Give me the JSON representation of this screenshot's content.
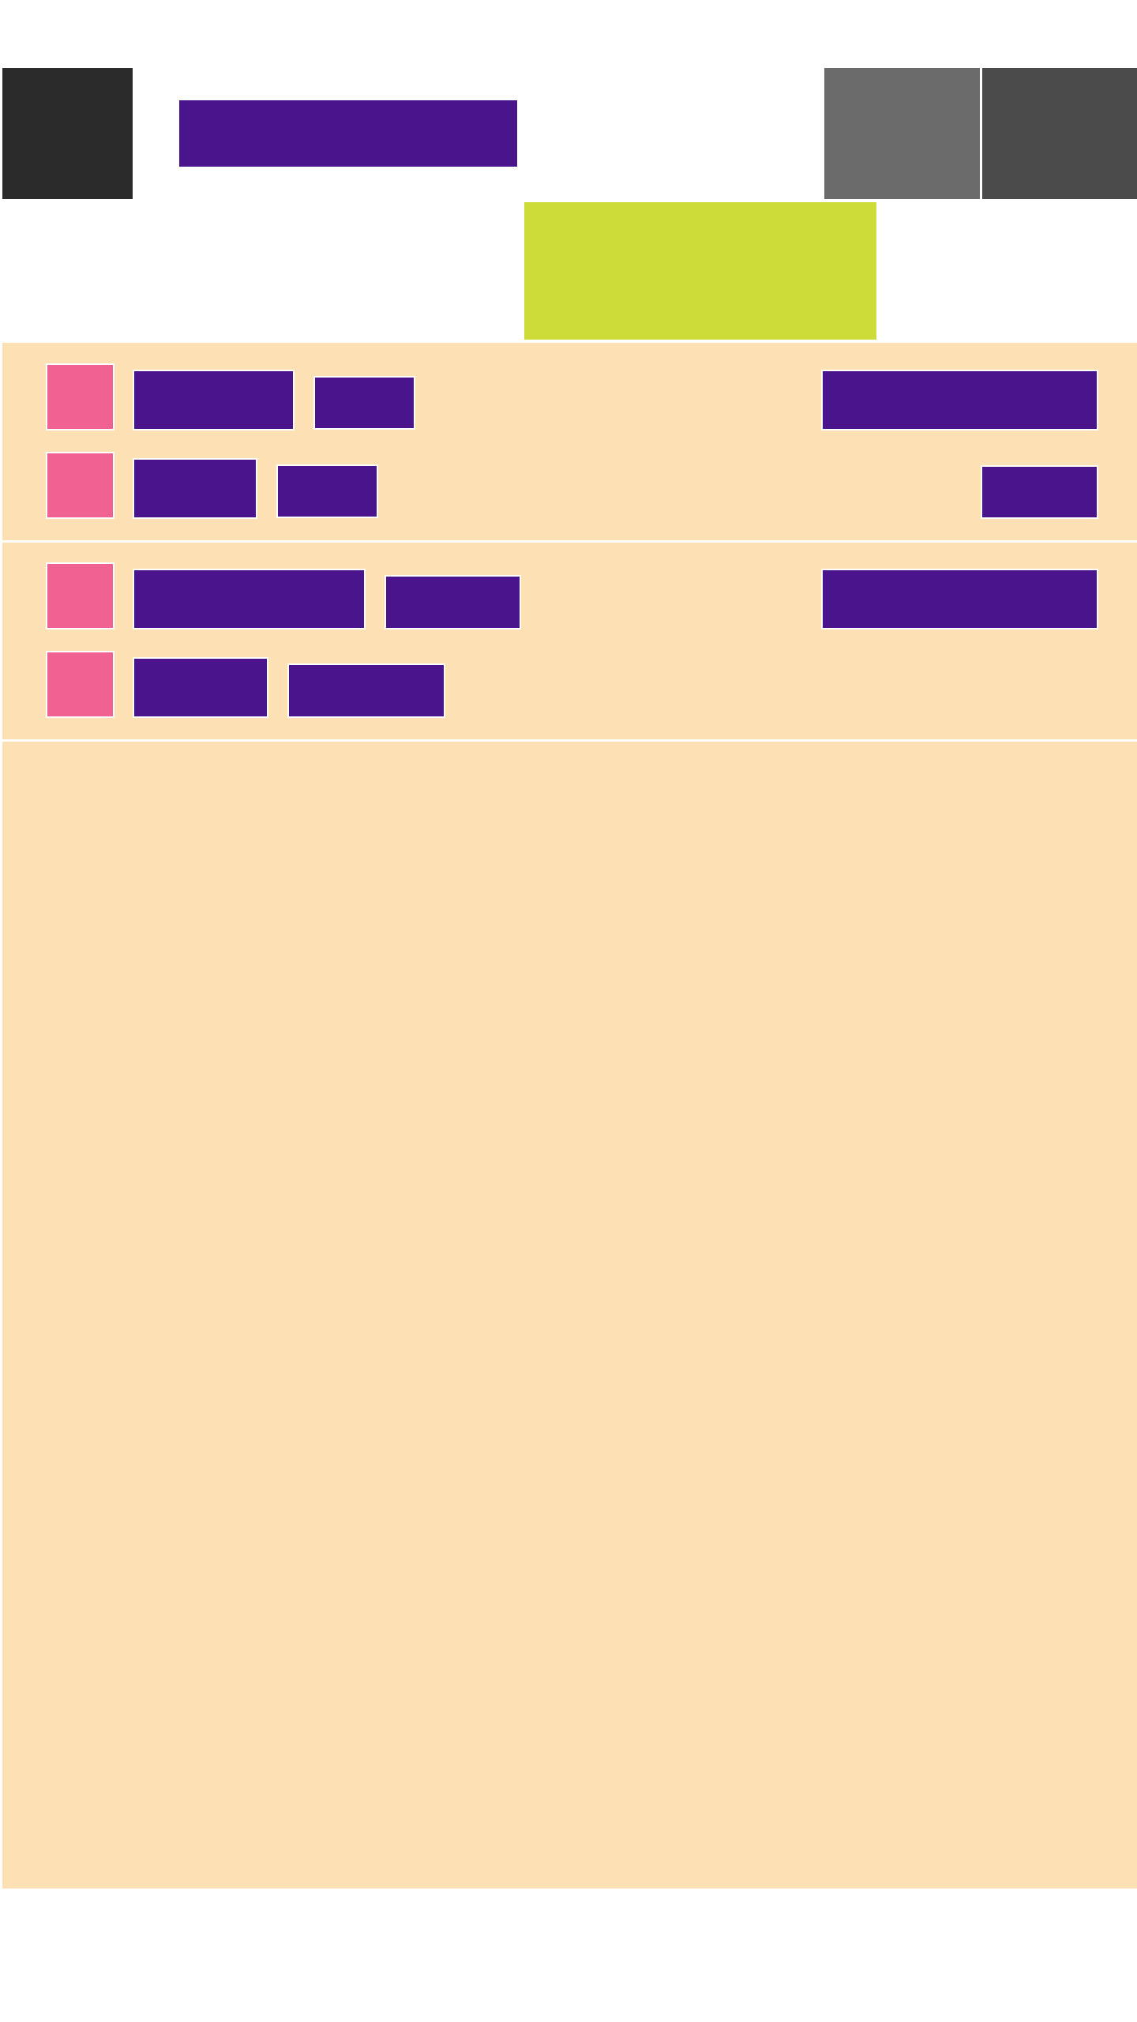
{
  "colors": {
    "nav_button": "#2b2b2b",
    "title_block": "#4a148c",
    "action_1": "#6b6b6b",
    "action_2": "#4b4b4b",
    "banner": "#cddc39",
    "panel_bg": "#fde0b3",
    "avatar": "#f06292",
    "chip": "#4a148c"
  },
  "header": {
    "title": ""
  },
  "rows": [
    {
      "name": "",
      "meta": "",
      "right": ""
    },
    {
      "name": "",
      "meta": "",
      "right": ""
    },
    {
      "name": "",
      "meta": "",
      "right": ""
    },
    {
      "name": "",
      "meta": "",
      "right": ""
    }
  ]
}
